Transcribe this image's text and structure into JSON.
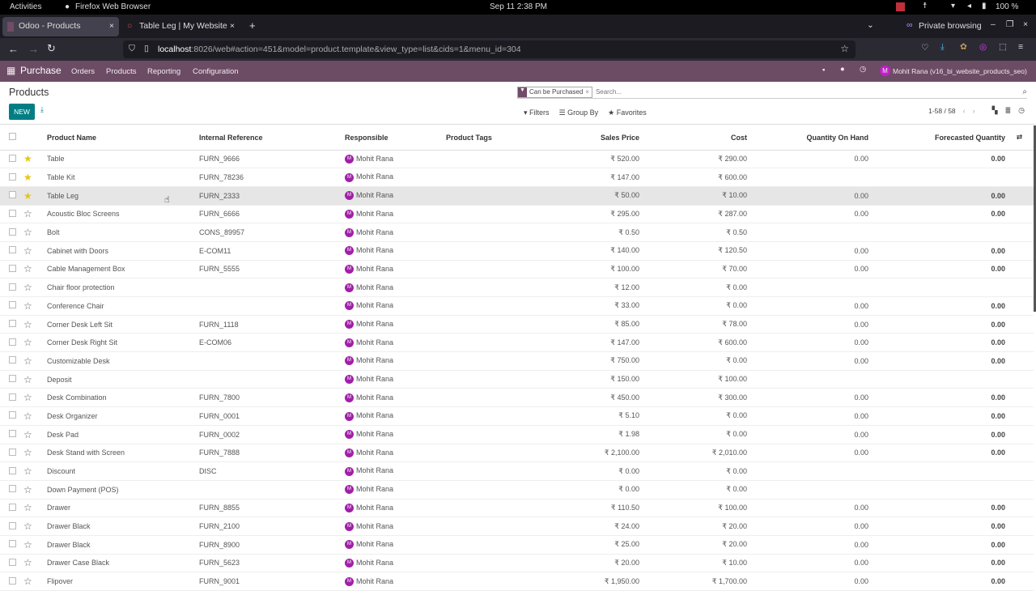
{
  "system": {
    "activities": "Activities",
    "app": "Firefox Web Browser",
    "datetime": "Sep 11  2:38 PM",
    "battery": "100 %"
  },
  "browser": {
    "tabs": [
      {
        "label": "Odoo - Products"
      },
      {
        "label": "Table Leg | My Website"
      }
    ],
    "private": "Private browsing",
    "url_host": "localhost",
    "url_rest": ":8026/web#action=451&model=product.template&view_type=list&cids=1&menu_id=304"
  },
  "nav": {
    "app": "Purchase",
    "menu": [
      "Orders",
      "Products",
      "Reporting",
      "Configuration"
    ],
    "user_initial": "M",
    "user": "Mohit Rana (v16_bi_website_products_seo)"
  },
  "control": {
    "title": "Products",
    "new": "NEW",
    "facet": "Can be Purchased",
    "search_placeholder": "Search...",
    "filters": "Filters",
    "group_by": "Group By",
    "favorites": "Favorites",
    "pager": "1-58 / 58"
  },
  "columns": [
    "Product Name",
    "Internal Reference",
    "Responsible",
    "Product Tags",
    "Sales Price",
    "Cost",
    "Quantity On Hand",
    "Forecasted Quantity"
  ],
  "rows": [
    {
      "fav": true,
      "name": "Table",
      "ref": "FURN_9666",
      "resp": "Mohit Rana",
      "price": "₹ 520.00",
      "cost": "₹ 290.00",
      "qty": "0.00",
      "fc": "0.00"
    },
    {
      "fav": true,
      "name": "Table Kit",
      "ref": "FURN_78236",
      "resp": "Mohit Rana",
      "price": "₹ 147.00",
      "cost": "₹ 600.00",
      "qty": "",
      "fc": ""
    },
    {
      "fav": true,
      "name": "Table Leg",
      "ref": "FURN_2333",
      "resp": "Mohit Rana",
      "price": "₹ 50.00",
      "cost": "₹ 10.00",
      "qty": "0.00",
      "fc": "0.00",
      "hover": true
    },
    {
      "fav": false,
      "name": "Acoustic Bloc Screens",
      "ref": "FURN_6666",
      "resp": "Mohit Rana",
      "price": "₹ 295.00",
      "cost": "₹ 287.00",
      "qty": "0.00",
      "fc": "0.00"
    },
    {
      "fav": false,
      "name": "Bolt",
      "ref": "CONS_89957",
      "resp": "Mohit Rana",
      "price": "₹ 0.50",
      "cost": "₹ 0.50",
      "qty": "",
      "fc": ""
    },
    {
      "fav": false,
      "name": "Cabinet with Doors",
      "ref": "E-COM11",
      "resp": "Mohit Rana",
      "price": "₹ 140.00",
      "cost": "₹ 120.50",
      "qty": "0.00",
      "fc": "0.00"
    },
    {
      "fav": false,
      "name": "Cable Management Box",
      "ref": "FURN_5555",
      "resp": "Mohit Rana",
      "price": "₹ 100.00",
      "cost": "₹ 70.00",
      "qty": "0.00",
      "fc": "0.00"
    },
    {
      "fav": false,
      "name": "Chair floor protection",
      "ref": "",
      "resp": "Mohit Rana",
      "price": "₹ 12.00",
      "cost": "₹ 0.00",
      "qty": "",
      "fc": ""
    },
    {
      "fav": false,
      "name": "Conference Chair",
      "ref": "",
      "resp": "Mohit Rana",
      "price": "₹ 33.00",
      "cost": "₹ 0.00",
      "qty": "0.00",
      "fc": "0.00"
    },
    {
      "fav": false,
      "name": "Corner Desk Left Sit",
      "ref": "FURN_1118",
      "resp": "Mohit Rana",
      "price": "₹ 85.00",
      "cost": "₹ 78.00",
      "qty": "0.00",
      "fc": "0.00"
    },
    {
      "fav": false,
      "name": "Corner Desk Right Sit",
      "ref": "E-COM06",
      "resp": "Mohit Rana",
      "price": "₹ 147.00",
      "cost": "₹ 600.00",
      "qty": "0.00",
      "fc": "0.00"
    },
    {
      "fav": false,
      "name": "Customizable Desk",
      "ref": "",
      "resp": "Mohit Rana",
      "price": "₹ 750.00",
      "cost": "₹ 0.00",
      "qty": "0.00",
      "fc": "0.00"
    },
    {
      "fav": false,
      "name": "Deposit",
      "ref": "",
      "resp": "Mohit Rana",
      "price": "₹ 150.00",
      "cost": "₹ 100.00",
      "qty": "",
      "fc": ""
    },
    {
      "fav": false,
      "name": "Desk Combination",
      "ref": "FURN_7800",
      "resp": "Mohit Rana",
      "price": "₹ 450.00",
      "cost": "₹ 300.00",
      "qty": "0.00",
      "fc": "0.00"
    },
    {
      "fav": false,
      "name": "Desk Organizer",
      "ref": "FURN_0001",
      "resp": "Mohit Rana",
      "price": "₹ 5.10",
      "cost": "₹ 0.00",
      "qty": "0.00",
      "fc": "0.00"
    },
    {
      "fav": false,
      "name": "Desk Pad",
      "ref": "FURN_0002",
      "resp": "Mohit Rana",
      "price": "₹ 1.98",
      "cost": "₹ 0.00",
      "qty": "0.00",
      "fc": "0.00"
    },
    {
      "fav": false,
      "name": "Desk Stand with Screen",
      "ref": "FURN_7888",
      "resp": "Mohit Rana",
      "price": "₹ 2,100.00",
      "cost": "₹ 2,010.00",
      "qty": "0.00",
      "fc": "0.00"
    },
    {
      "fav": false,
      "name": "Discount",
      "ref": "DISC",
      "resp": "Mohit Rana",
      "price": "₹ 0.00",
      "cost": "₹ 0.00",
      "qty": "",
      "fc": ""
    },
    {
      "fav": false,
      "name": "Down Payment (POS)",
      "ref": "",
      "resp": "Mohit Rana",
      "price": "₹ 0.00",
      "cost": "₹ 0.00",
      "qty": "",
      "fc": ""
    },
    {
      "fav": false,
      "name": "Drawer",
      "ref": "FURN_8855",
      "resp": "Mohit Rana",
      "price": "₹ 110.50",
      "cost": "₹ 100.00",
      "qty": "0.00",
      "fc": "0.00"
    },
    {
      "fav": false,
      "name": "Drawer Black",
      "ref": "FURN_2100",
      "resp": "Mohit Rana",
      "price": "₹ 24.00",
      "cost": "₹ 20.00",
      "qty": "0.00",
      "fc": "0.00"
    },
    {
      "fav": false,
      "name": "Drawer Black",
      "ref": "FURN_8900",
      "resp": "Mohit Rana",
      "price": "₹ 25.00",
      "cost": "₹ 20.00",
      "qty": "0.00",
      "fc": "0.00"
    },
    {
      "fav": false,
      "name": "Drawer Case Black",
      "ref": "FURN_5623",
      "resp": "Mohit Rana",
      "price": "₹ 20.00",
      "cost": "₹ 10.00",
      "qty": "0.00",
      "fc": "0.00"
    },
    {
      "fav": false,
      "name": "Flipover",
      "ref": "FURN_9001",
      "resp": "Mohit Rana",
      "price": "₹ 1,950.00",
      "cost": "₹ 1,700.00",
      "qty": "0.00",
      "fc": "0.00"
    }
  ],
  "colors": {
    "brand": "#714b67",
    "new_button": "#017e84",
    "favorite": "#e8c514",
    "avatar": "#a020a8"
  }
}
